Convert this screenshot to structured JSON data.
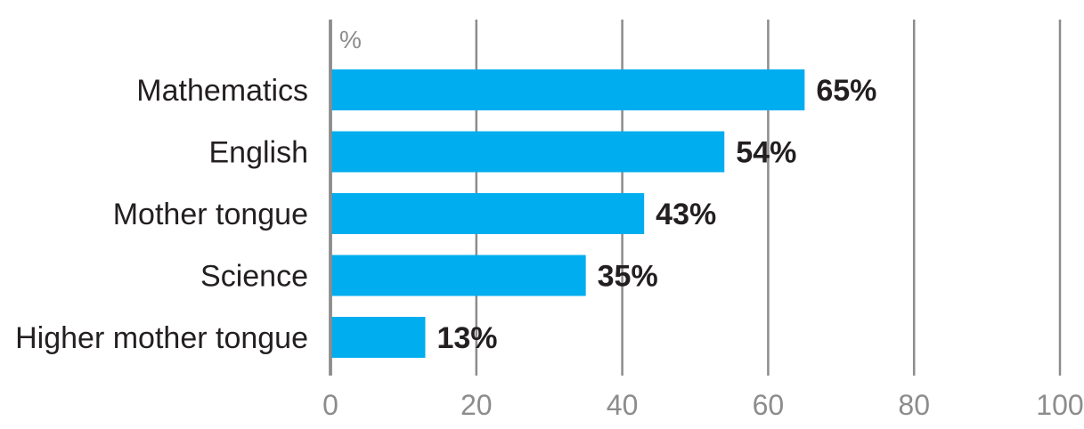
{
  "chart_data": {
    "type": "bar",
    "orientation": "horizontal",
    "categories": [
      "Mathematics",
      "English",
      "Mother tongue",
      "Science",
      "Higher mother tongue"
    ],
    "values": [
      65,
      54,
      43,
      35,
      13
    ],
    "value_labels": [
      "65%",
      "54%",
      "43%",
      "35%",
      "13%"
    ],
    "unit_label": "%",
    "x_ticks": [
      "0",
      "20",
      "40",
      "60",
      "80",
      "100"
    ],
    "xlim": [
      0,
      100
    ],
    "grid": true,
    "legend": "none",
    "colors": {
      "bar": "#00adef",
      "grid": "#8c8c8c",
      "text": "#231f20",
      "tick": "#8c8c8c"
    }
  }
}
